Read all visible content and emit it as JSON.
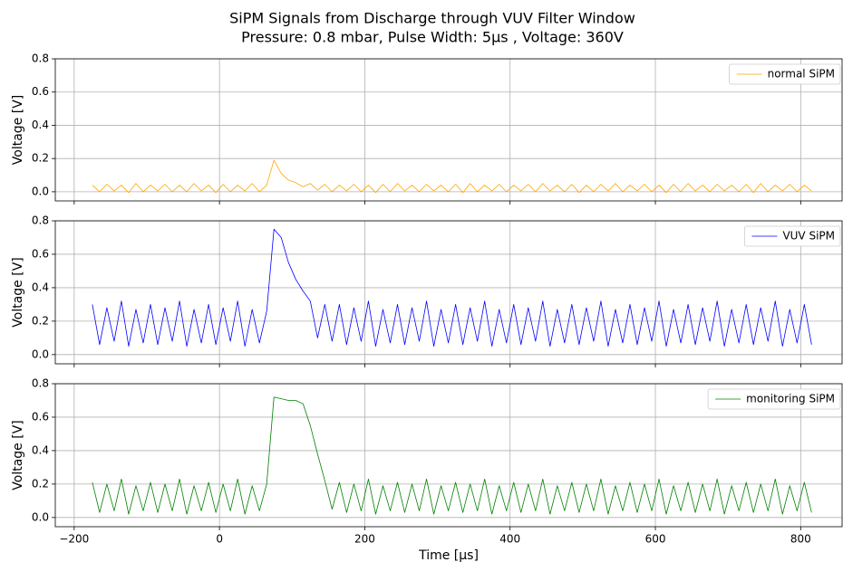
{
  "title": [
    "SiPM Signals from Discharge through VUV Filter Window",
    "Pressure: 0.8 mbar, Pulse Width: 5µs , Voltage: 360V"
  ],
  "chart_data": [
    {
      "type": "line",
      "ylabel": "Voltage [V]",
      "legend": "upper right",
      "grid": true,
      "xlim": [
        -226,
        857
      ],
      "ylim": [
        -0.055,
        0.8
      ],
      "xticks": [
        {
          "value": -200,
          "label": "−200"
        },
        0,
        200,
        400,
        600,
        800
      ],
      "yticks": [
        {
          "value": 0,
          "label": "0.0"
        },
        0.2,
        0.4,
        0.6,
        0.8
      ],
      "x": [
        -175,
        -165,
        -155,
        -145,
        -135,
        -125,
        -115,
        -105,
        -95,
        -85,
        -75,
        -65,
        -55,
        -45,
        -35,
        -25,
        -15,
        -5,
        5,
        15,
        25,
        35,
        45,
        55,
        65,
        75,
        85,
        95,
        105,
        115,
        125,
        135,
        145,
        155,
        165,
        175,
        185,
        195,
        205,
        215,
        225,
        235,
        245,
        255,
        265,
        275,
        285,
        295,
        305,
        315,
        325,
        335,
        345,
        355,
        365,
        375,
        385,
        395,
        405,
        415,
        425,
        435,
        445,
        455,
        465,
        475,
        485,
        495,
        505,
        515,
        525,
        535,
        545,
        555,
        565,
        575,
        585,
        595,
        605,
        615,
        625,
        635,
        645,
        655,
        665,
        675,
        685,
        695,
        705,
        715,
        725,
        735,
        745,
        755,
        765,
        775,
        785,
        795,
        805,
        815
      ],
      "series": [
        {
          "name": "normal SiPM",
          "color": "#ffa500",
          "values": [
            0.04,
            0.0,
            0.045,
            0.005,
            0.04,
            -0.005,
            0.05,
            0.0,
            0.04,
            0.005,
            0.045,
            0.0,
            0.04,
            0.0,
            0.05,
            0.005,
            0.04,
            -0.005,
            0.045,
            0.0,
            0.04,
            0.005,
            0.05,
            0.0,
            0.04,
            0.19,
            0.11,
            0.07,
            0.055,
            0.03,
            0.05,
            0.01,
            0.045,
            0.0,
            0.04,
            0.005,
            0.045,
            0.0,
            0.04,
            -0.005,
            0.045,
            0.0,
            0.05,
            0.005,
            0.04,
            0.0,
            0.045,
            0.005,
            0.04,
            0.0,
            0.045,
            -0.005,
            0.05,
            0.0,
            0.04,
            0.005,
            0.045,
            0.0,
            0.04,
            0.005,
            0.045,
            0.0,
            0.05,
            0.005,
            0.04,
            0.0,
            0.045,
            -0.005,
            0.04,
            0.0,
            0.045,
            0.005,
            0.05,
            0.0,
            0.04,
            0.005,
            0.045,
            0.0,
            0.04,
            -0.005,
            0.045,
            0.0,
            0.05,
            0.005,
            0.04,
            0.0,
            0.045,
            0.005,
            0.04,
            0.0,
            0.045,
            -0.005,
            0.05,
            0.0,
            0.04,
            0.005,
            0.045,
            0.0,
            0.04,
            0.005
          ]
        }
      ]
    },
    {
      "type": "line",
      "ylabel": "Voltage [V]",
      "legend": "upper right",
      "grid": true,
      "xlim": [
        -226,
        857
      ],
      "ylim": [
        -0.055,
        0.8
      ],
      "xticks": [
        {
          "value": -200,
          "label": "−200"
        },
        0,
        200,
        400,
        600,
        800
      ],
      "yticks": [
        {
          "value": 0,
          "label": "0.0"
        },
        0.2,
        0.4,
        0.6,
        0.8
      ],
      "x": [
        -175,
        -165,
        -155,
        -145,
        -135,
        -125,
        -115,
        -105,
        -95,
        -85,
        -75,
        -65,
        -55,
        -45,
        -35,
        -25,
        -15,
        -5,
        5,
        15,
        25,
        35,
        45,
        55,
        65,
        75,
        85,
        95,
        105,
        115,
        125,
        135,
        145,
        155,
        165,
        175,
        185,
        195,
        205,
        215,
        225,
        235,
        245,
        255,
        265,
        275,
        285,
        295,
        305,
        315,
        325,
        335,
        345,
        355,
        365,
        375,
        385,
        395,
        405,
        415,
        425,
        435,
        445,
        455,
        465,
        475,
        485,
        495,
        505,
        515,
        525,
        535,
        545,
        555,
        565,
        575,
        585,
        595,
        605,
        615,
        625,
        635,
        645,
        655,
        665,
        675,
        685,
        695,
        705,
        715,
        725,
        735,
        745,
        755,
        765,
        775,
        785,
        795,
        805,
        815
      ],
      "series": [
        {
          "name": "VUV SiPM",
          "color": "#0000ff",
          "values": [
            0.3,
            0.06,
            0.28,
            0.08,
            0.32,
            0.05,
            0.27,
            0.07,
            0.3,
            0.06,
            0.28,
            0.08,
            0.32,
            0.05,
            0.27,
            0.07,
            0.3,
            0.06,
            0.28,
            0.08,
            0.32,
            0.05,
            0.27,
            0.07,
            0.26,
            0.75,
            0.7,
            0.55,
            0.45,
            0.38,
            0.32,
            0.1,
            0.3,
            0.08,
            0.3,
            0.06,
            0.28,
            0.08,
            0.32,
            0.05,
            0.27,
            0.07,
            0.3,
            0.06,
            0.28,
            0.08,
            0.32,
            0.05,
            0.27,
            0.07,
            0.3,
            0.06,
            0.28,
            0.08,
            0.32,
            0.05,
            0.27,
            0.07,
            0.3,
            0.06,
            0.28,
            0.08,
            0.32,
            0.05,
            0.27,
            0.07,
            0.3,
            0.06,
            0.28,
            0.08,
            0.32,
            0.05,
            0.27,
            0.07,
            0.3,
            0.06,
            0.28,
            0.08,
            0.32,
            0.05,
            0.27,
            0.07,
            0.3,
            0.06,
            0.28,
            0.08,
            0.32,
            0.05,
            0.27,
            0.07,
            0.3,
            0.06,
            0.28,
            0.08,
            0.32,
            0.05,
            0.27,
            0.07,
            0.3,
            0.06
          ]
        }
      ]
    },
    {
      "type": "line",
      "ylabel": "Voltage [V]",
      "xlabel": "Time [µs]",
      "legend": "upper right",
      "grid": true,
      "xlim": [
        -226,
        857
      ],
      "ylim": [
        -0.055,
        0.8
      ],
      "xticks": [
        {
          "value": -200,
          "label": "−200"
        },
        0,
        200,
        400,
        600,
        800
      ],
      "yticks": [
        {
          "value": 0,
          "label": "0.0"
        },
        0.2,
        0.4,
        0.6,
        0.8
      ],
      "x": [
        -175,
        -165,
        -155,
        -145,
        -135,
        -125,
        -115,
        -105,
        -95,
        -85,
        -75,
        -65,
        -55,
        -45,
        -35,
        -25,
        -15,
        -5,
        5,
        15,
        25,
        35,
        45,
        55,
        65,
        75,
        85,
        95,
        105,
        115,
        125,
        135,
        145,
        155,
        165,
        175,
        185,
        195,
        205,
        215,
        225,
        235,
        245,
        255,
        265,
        275,
        285,
        295,
        305,
        315,
        325,
        335,
        345,
        355,
        365,
        375,
        385,
        395,
        405,
        415,
        425,
        435,
        445,
        455,
        465,
        475,
        485,
        495,
        505,
        515,
        525,
        535,
        545,
        555,
        565,
        575,
        585,
        595,
        605,
        615,
        625,
        635,
        645,
        655,
        665,
        675,
        685,
        695,
        705,
        715,
        725,
        735,
        745,
        755,
        765,
        775,
        785,
        795,
        805,
        815
      ],
      "series": [
        {
          "name": "monitoring SiPM",
          "color": "#008000",
          "values": [
            0.21,
            0.03,
            0.2,
            0.04,
            0.23,
            0.02,
            0.19,
            0.04,
            0.21,
            0.03,
            0.2,
            0.04,
            0.23,
            0.02,
            0.19,
            0.04,
            0.21,
            0.03,
            0.2,
            0.04,
            0.23,
            0.02,
            0.19,
            0.04,
            0.2,
            0.72,
            0.71,
            0.7,
            0.7,
            0.68,
            0.55,
            0.38,
            0.22,
            0.05,
            0.21,
            0.03,
            0.2,
            0.04,
            0.23,
            0.02,
            0.19,
            0.04,
            0.21,
            0.03,
            0.2,
            0.04,
            0.23,
            0.02,
            0.19,
            0.04,
            0.21,
            0.03,
            0.2,
            0.04,
            0.23,
            0.02,
            0.19,
            0.04,
            0.21,
            0.03,
            0.2,
            0.04,
            0.23,
            0.02,
            0.19,
            0.04,
            0.21,
            0.03,
            0.2,
            0.04,
            0.23,
            0.02,
            0.19,
            0.04,
            0.21,
            0.03,
            0.2,
            0.04,
            0.23,
            0.02,
            0.19,
            0.04,
            0.21,
            0.03,
            0.2,
            0.04,
            0.23,
            0.02,
            0.19,
            0.04,
            0.21,
            0.03,
            0.2,
            0.04,
            0.23,
            0.02,
            0.19,
            0.04,
            0.21,
            0.03
          ]
        }
      ]
    }
  ]
}
